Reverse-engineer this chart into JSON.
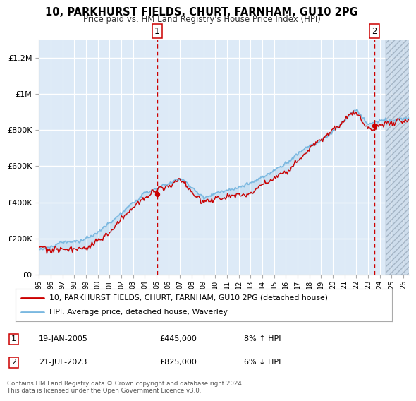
{
  "title": "10, PARKHURST FIELDS, CHURT, FARNHAM, GU10 2PG",
  "subtitle": "Price paid vs. HM Land Registry's House Price Index (HPI)",
  "footer": "Contains HM Land Registry data © Crown copyright and database right 2024.\nThis data is licensed under the Open Government Licence v3.0.",
  "legend_line1": "10, PARKHURST FIELDS, CHURT, FARNHAM, GU10 2PG (detached house)",
  "legend_line2": "HPI: Average price, detached house, Waverley",
  "annotation1_date": "19-JAN-2005",
  "annotation1_price": "£445,000",
  "annotation1_hpi": "8% ↑ HPI",
  "annotation2_date": "21-JUL-2023",
  "annotation2_price": "£825,000",
  "annotation2_hpi": "6% ↓ HPI",
  "ylim": [
    0,
    1300000
  ],
  "yticks": [
    0,
    200000,
    400000,
    600000,
    800000,
    1000000,
    1200000
  ],
  "ytick_labels": [
    "£0",
    "£200K",
    "£400K",
    "£600K",
    "£800K",
    "£1M",
    "£1.2M"
  ],
  "xmin": 1995.0,
  "xmax": 2026.5,
  "hatch_start": 2024.5,
  "vline1_x": 2005.05,
  "vline2_x": 2023.55,
  "sale1_x": 2005.05,
  "sale1_y": 445000,
  "sale2_x": 2023.55,
  "sale2_y": 825000,
  "bg_color": "#ddeaf7",
  "hpi_color": "#7ab8e0",
  "price_color": "#cc0000",
  "grid_color": "#ffffff"
}
